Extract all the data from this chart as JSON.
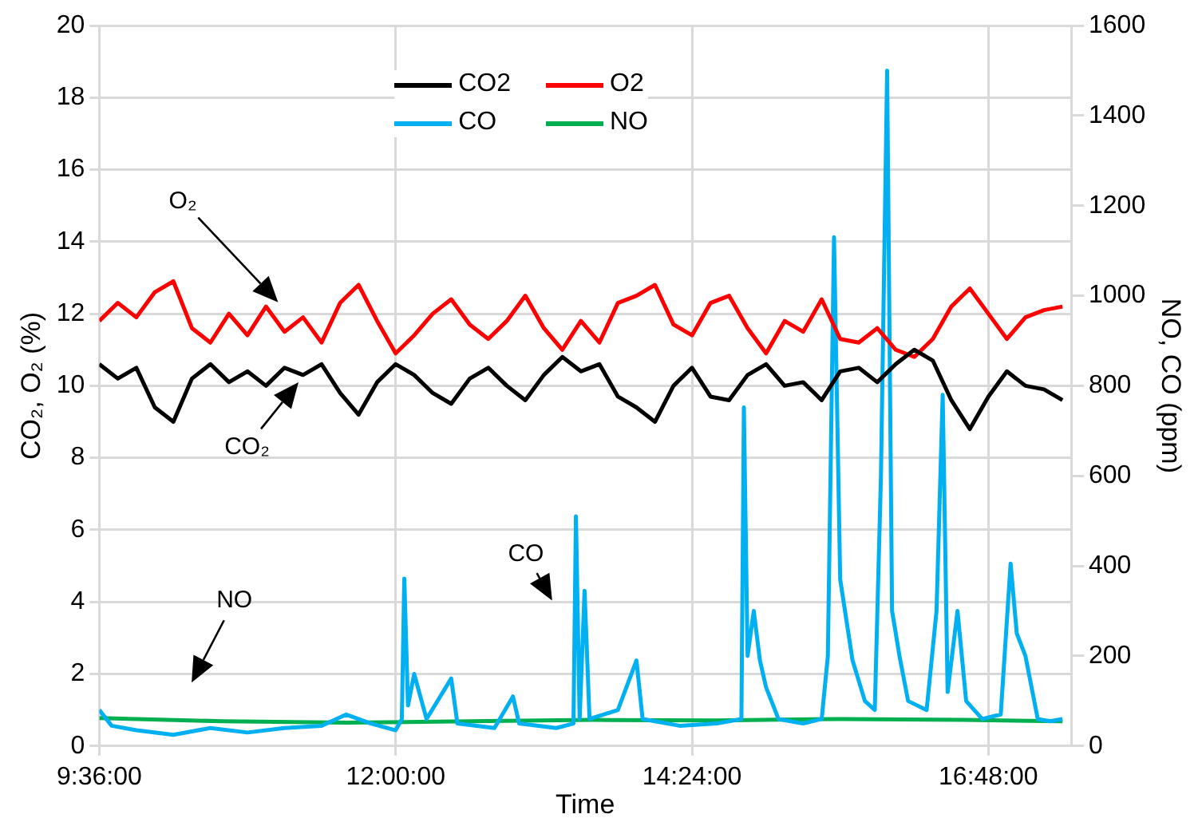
{
  "chart_data": {
    "type": "line",
    "xlabel": "Time",
    "ylabel": "CO₂, O₂ (%)",
    "y2label": "NO, CO (ppm)",
    "x": [
      9.6,
      9.75,
      9.9,
      10.05,
      10.2,
      10.35,
      10.5,
      10.65,
      10.8,
      10.95,
      11.1,
      11.25,
      11.4,
      11.55,
      11.7,
      11.85,
      12.0,
      12.15,
      12.3,
      12.45,
      12.6,
      12.75,
      12.9,
      13.05,
      13.2,
      13.35,
      13.5,
      13.65,
      13.8,
      13.95,
      14.1,
      14.25,
      14.4,
      14.55,
      14.7,
      14.85,
      15.0,
      15.15,
      15.3,
      15.45,
      15.6,
      15.75,
      15.9,
      16.05,
      16.2,
      16.35,
      16.5,
      16.65,
      16.8,
      16.95,
      17.1,
      17.25,
      17.4
    ],
    "xlim": [
      9.6,
      17.47
    ],
    "xticks": [
      {
        "value": 9.6,
        "label": "9:36:00"
      },
      {
        "value": 12,
        "label": "12:00:00"
      },
      {
        "value": 14.4,
        "label": "14:24:00"
      },
      {
        "value": 16.8,
        "label": "16:48:00"
      }
    ],
    "ylim": [
      0,
      20
    ],
    "yticks": [
      0,
      2,
      4,
      6,
      8,
      10,
      12,
      14,
      16,
      18,
      20
    ],
    "y2lim": [
      0,
      1600
    ],
    "y2ticks": [
      0,
      200,
      400,
      600,
      800,
      1000,
      1200,
      1400,
      1600
    ],
    "grid": true,
    "legend": "top",
    "marker": "none",
    "line_style": "solid",
    "series": [
      {
        "name": "CO2",
        "color": "#000000",
        "values": [
          10.6,
          10.2,
          10.5,
          9.4,
          9.0,
          10.2,
          10.6,
          10.1,
          10.4,
          10.0,
          10.5,
          10.3,
          10.6,
          9.8,
          9.2,
          10.1,
          10.6,
          10.3,
          9.8,
          9.5,
          10.2,
          10.5,
          10.0,
          9.6,
          10.3,
          10.8,
          10.4,
          10.6,
          9.7,
          9.4,
          9.0,
          10.0,
          10.5,
          9.7,
          9.6,
          10.3,
          10.6,
          10.0,
          10.1,
          9.6,
          10.4,
          10.5,
          10.1,
          10.6,
          11.0,
          10.7,
          9.6,
          8.8,
          9.7,
          10.4,
          10.0,
          9.9,
          9.6
        ]
      },
      {
        "name": "O2",
        "color": "#ff0000",
        "values": [
          11.8,
          12.3,
          11.9,
          12.6,
          12.9,
          11.6,
          11.2,
          12.0,
          11.4,
          12.2,
          11.5,
          11.9,
          11.2,
          12.3,
          12.8,
          11.8,
          10.9,
          11.4,
          12.0,
          12.4,
          11.7,
          11.3,
          11.8,
          12.5,
          11.6,
          11.0,
          11.8,
          11.2,
          12.3,
          12.5,
          12.8,
          11.7,
          11.4,
          12.3,
          12.5,
          11.6,
          10.9,
          11.8,
          11.5,
          12.4,
          11.3,
          11.2,
          11.6,
          11.0,
          10.8,
          11.3,
          12.2,
          12.7,
          12.0,
          11.3,
          11.9,
          12.1,
          12.2
        ]
      },
      {
        "name": "CO",
        "color": "#00b0f0",
        "axis": "y2",
        "x": [
          9.6,
          9.7,
          9.9,
          10.2,
          10.5,
          10.8,
          11.1,
          11.4,
          11.6,
          11.8,
          12.0,
          12.05,
          12.07,
          12.1,
          12.15,
          12.25,
          12.45,
          12.5,
          12.8,
          12.95,
          13.0,
          13.3,
          13.44,
          13.46,
          13.49,
          13.53,
          13.57,
          13.8,
          13.95,
          14.0,
          14.3,
          14.6,
          14.8,
          14.82,
          14.85,
          14.9,
          14.95,
          15.0,
          15.1,
          15.3,
          15.45,
          15.5,
          15.55,
          15.6,
          15.65,
          15.7,
          15.8,
          15.88,
          15.93,
          15.98,
          16.02,
          16.08,
          16.15,
          16.3,
          16.38,
          16.43,
          16.47,
          16.55,
          16.62,
          16.75,
          16.9,
          16.98,
          17.03,
          17.1,
          17.2,
          17.3,
          17.4
        ],
        "values": [
          80,
          45,
          35,
          25,
          40,
          30,
          40,
          45,
          70,
          50,
          35,
          60,
          372,
          90,
          160,
          60,
          150,
          50,
          40,
          110,
          50,
          40,
          50,
          510,
          60,
          345,
          60,
          80,
          190,
          60,
          45,
          50,
          60,
          752,
          200,
          300,
          190,
          130,
          60,
          50,
          60,
          200,
          1130,
          370,
          280,
          190,
          100,
          80,
          600,
          1500,
          300,
          200,
          100,
          80,
          300,
          780,
          120,
          300,
          100,
          60,
          70,
          405,
          250,
          200,
          60,
          55,
          60
        ]
      },
      {
        "name": "NO",
        "color": "#00b050",
        "axis": "y2",
        "x": [
          9.6,
          10.6,
          11.6,
          12.6,
          13.6,
          14.6,
          15.6,
          16.6,
          17.4
        ],
        "values": [
          62,
          55,
          52,
          55,
          58,
          57,
          60,
          58,
          55
        ]
      }
    ],
    "annotations": [
      "O₂",
      "CO₂",
      "CO",
      "NO"
    ]
  }
}
